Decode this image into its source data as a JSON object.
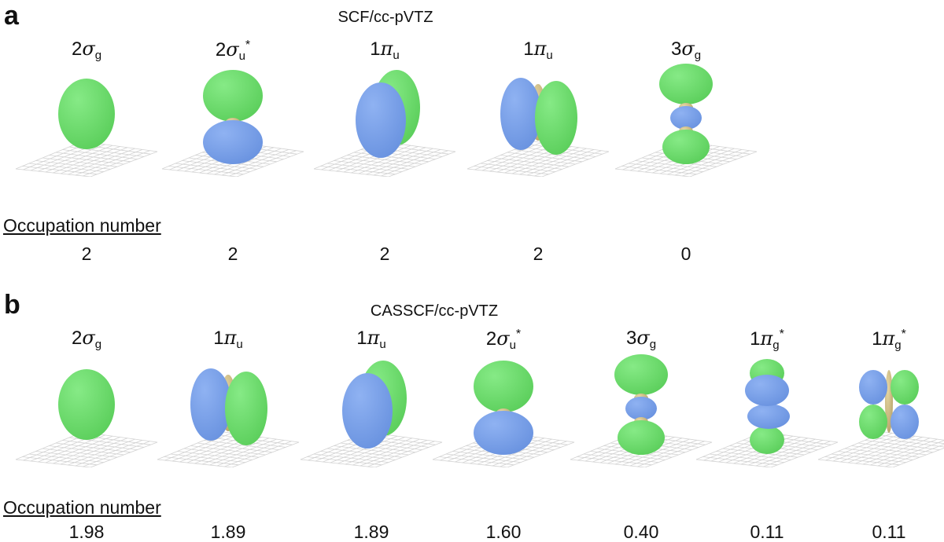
{
  "panels": [
    {
      "letter": "a",
      "method": "SCF/cc-pVTZ",
      "occupation_title": "Occupation number",
      "orbitals": [
        {
          "prefix": "2",
          "symbol": "σ",
          "sub": "g",
          "sup": "",
          "occupation": "2",
          "shape": "sphere"
        },
        {
          "prefix": "2",
          "symbol": "σ",
          "sub": "u",
          "sup": "*",
          "occupation": "2",
          "shape": "sigma-u"
        },
        {
          "prefix": "1",
          "symbol": "π",
          "sub": "u",
          "sup": "",
          "occupation": "2",
          "shape": "pi-front"
        },
        {
          "prefix": "1",
          "symbol": "π",
          "sub": "u",
          "sup": "",
          "occupation": "2",
          "shape": "pi-side"
        },
        {
          "prefix": "3",
          "symbol": "σ",
          "sub": "g",
          "sup": "",
          "occupation": "0",
          "shape": "sigma-g3"
        }
      ]
    },
    {
      "letter": "b",
      "method": "CASSCF/cc-pVTZ",
      "occupation_title": "Occupation number",
      "orbitals": [
        {
          "prefix": "2",
          "symbol": "σ",
          "sub": "g",
          "sup": "",
          "occupation": "1.98",
          "shape": "sphere"
        },
        {
          "prefix": "1",
          "symbol": "π",
          "sub": "u",
          "sup": "",
          "occupation": "1.89",
          "shape": "pi-side"
        },
        {
          "prefix": "1",
          "symbol": "π",
          "sub": "u",
          "sup": "",
          "occupation": "1.89",
          "shape": "pi-front"
        },
        {
          "prefix": "2",
          "symbol": "σ",
          "sub": "u",
          "sup": "*",
          "occupation": "1.60",
          "shape": "sigma-u"
        },
        {
          "prefix": "3",
          "symbol": "σ",
          "sub": "g",
          "sup": "",
          "occupation": "0.40",
          "shape": "sigma-g3"
        },
        {
          "prefix": "1",
          "symbol": "π",
          "sub": "g",
          "sup": "*",
          "occupation": "0.11",
          "shape": "pi-g-front"
        },
        {
          "prefix": "1",
          "symbol": "π",
          "sub": "g",
          "sup": "*",
          "occupation": "0.11",
          "shape": "pi-g-cross"
        }
      ]
    }
  ],
  "colors": {
    "positive_lobe": "#86ea86",
    "negative_lobe": "#8fb2f2",
    "core": "#e6d7a4",
    "grid": "#d2d2d2"
  }
}
